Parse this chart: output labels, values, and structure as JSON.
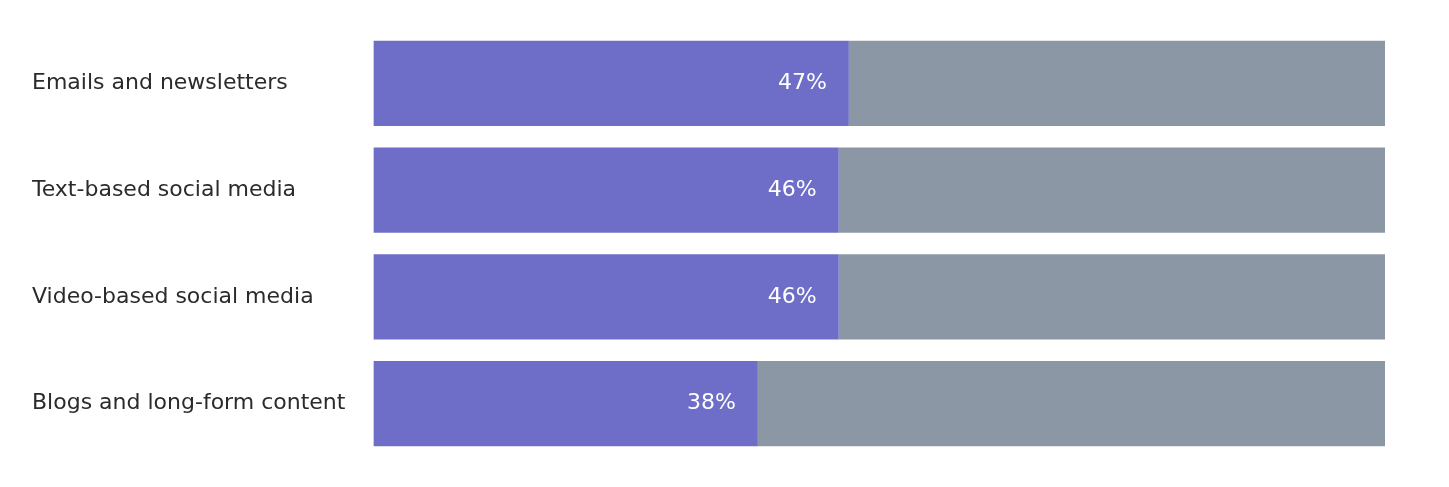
{
  "chart_data": {
    "type": "bar",
    "orientation": "horizontal",
    "stacked": true,
    "categories": [
      "Emails and newsletters",
      "Text-based social media",
      "Video-based social media",
      "Blogs and long-form content"
    ],
    "series": [
      {
        "color": "#6e6ec8",
        "values": [
          47,
          46,
          46,
          38
        ],
        "value_labels": [
          "47%",
          "46%",
          "46%",
          "38%"
        ]
      },
      {
        "color": "#8c97a6",
        "values": [
          53,
          54,
          54,
          62
        ]
      }
    ],
    "xlim": [
      0,
      100
    ],
    "tick_labels": "y",
    "legend": false
  }
}
